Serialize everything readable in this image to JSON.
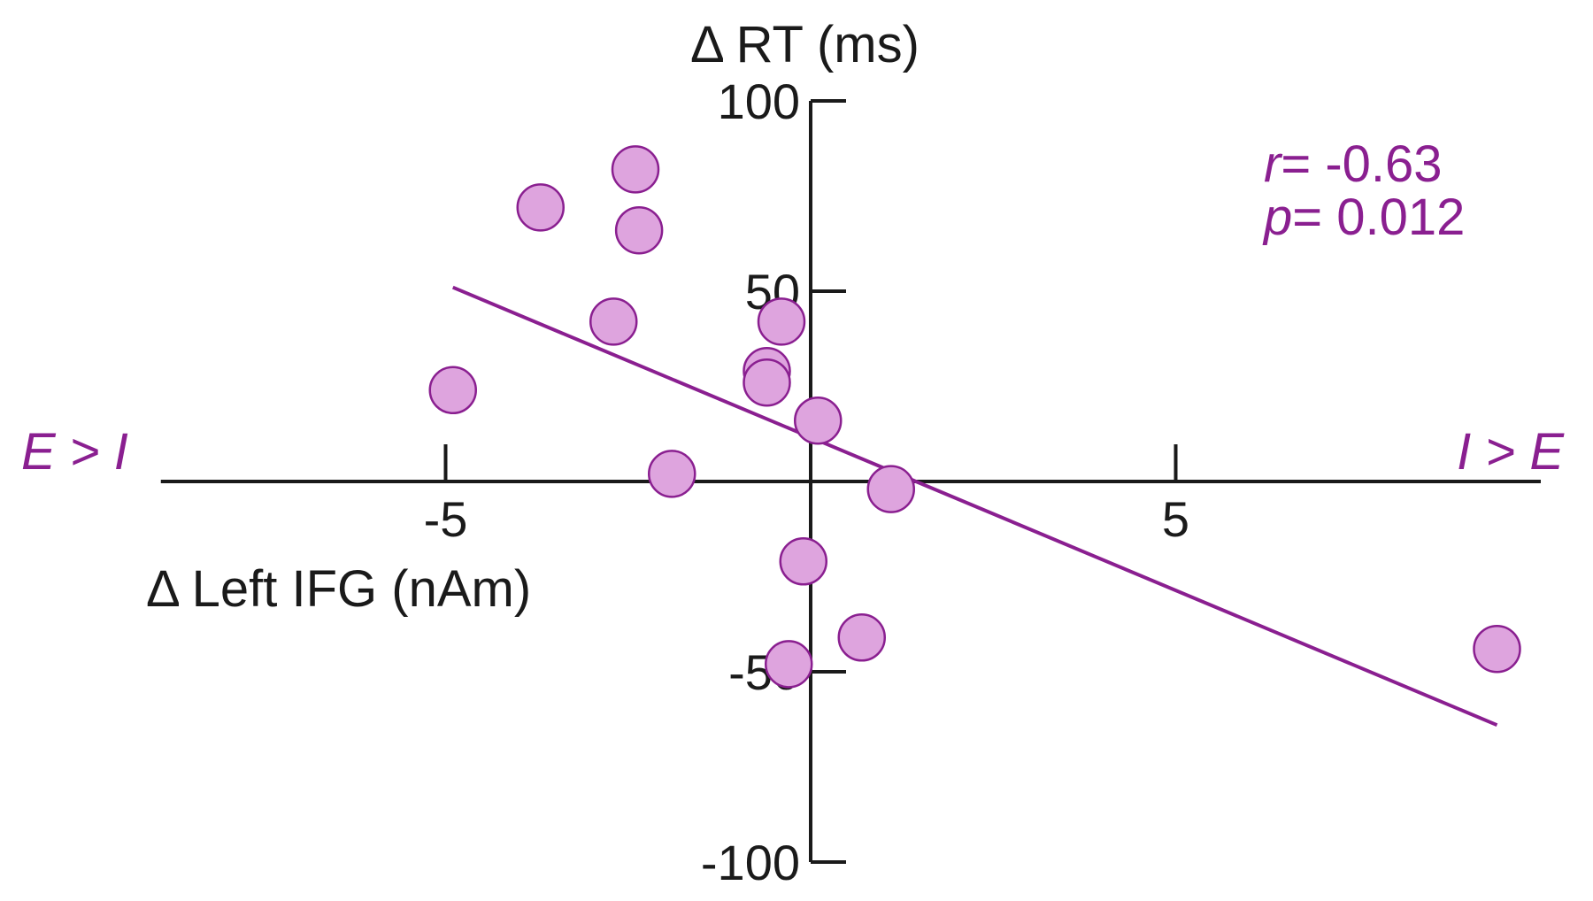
{
  "chart_data": {
    "type": "scatter",
    "title": "",
    "xlabel": "Δ Left IFG (nAm)",
    "ylabel": "Δ RT (ms)",
    "xlim": [
      -8.9,
      10
    ],
    "ylim": [
      -100,
      100
    ],
    "x_ticks": [
      -5,
      5
    ],
    "y_ticks": [
      -100,
      -50,
      50,
      100
    ],
    "x_tick_labels": [
      "-5",
      "5"
    ],
    "y_tick_labels": [
      "-100",
      "-50",
      "50",
      "100"
    ],
    "grid": false,
    "left_annotation": {
      "a": "E",
      "op": " > ",
      "b": "I"
    },
    "right_annotation": {
      "a": "I",
      "op": " > ",
      "b": "E"
    },
    "stats": {
      "r_symbol": "r",
      "r_value": "= -0.63",
      "p_symbol": "p",
      "p_value": "= 0.012"
    },
    "colors": {
      "marker_fill": "#dea4de",
      "marker_edge": "#8a1f90",
      "line": "#8a1f90",
      "annotation": "#8a1f90"
    },
    "series": [
      {
        "points": [
          {
            "x": -2.4,
            "y": 82
          },
          {
            "x": -3.7,
            "y": 72
          },
          {
            "x": -2.35,
            "y": 66
          },
          {
            "x": -2.7,
            "y": 42
          },
          {
            "x": -0.4,
            "y": 42
          },
          {
            "x": -0.6,
            "y": 29
          },
          {
            "x": -0.6,
            "y": 26
          },
          {
            "x": -4.9,
            "y": 24
          },
          {
            "x": 0.1,
            "y": 16
          },
          {
            "x": -1.9,
            "y": 2
          },
          {
            "x": 1.1,
            "y": -2
          },
          {
            "x": -0.1,
            "y": -21
          },
          {
            "x": 0.7,
            "y": -41
          },
          {
            "x": -0.3,
            "y": -48
          },
          {
            "x": 9.4,
            "y": -44
          }
        ]
      }
    ],
    "regression": {
      "x": [
        -4.9,
        9.4
      ],
      "y": [
        51,
        -64
      ]
    }
  }
}
